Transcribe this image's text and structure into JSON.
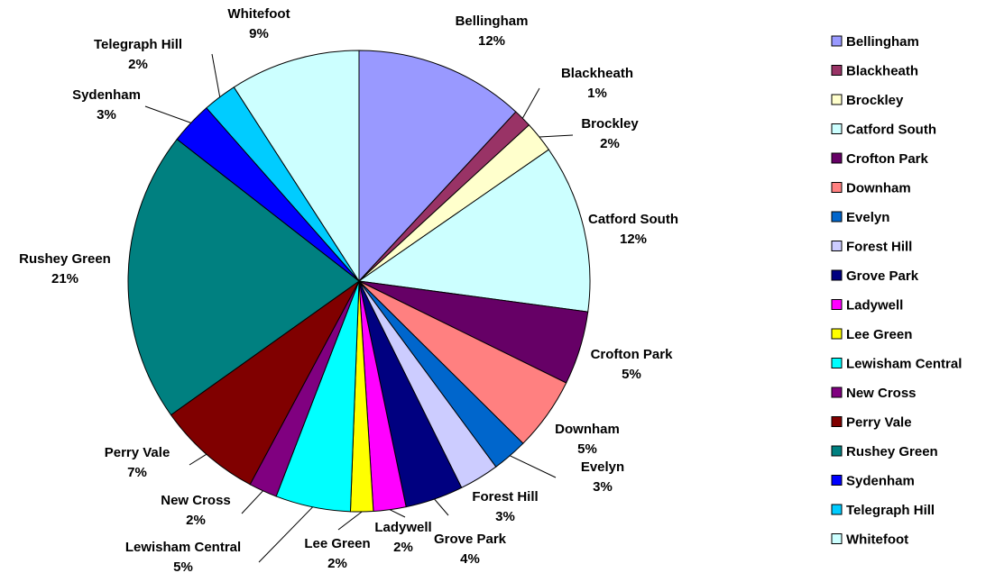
{
  "chart_data": {
    "type": "pie",
    "title": "",
    "legend_position": "right",
    "slices": [
      {
        "label": "Bellingham",
        "percent_label": "12%",
        "value": 12,
        "color": "#9999ff"
      },
      {
        "label": "Blackheath",
        "percent_label": "1%",
        "value": 1.3,
        "color": "#993366"
      },
      {
        "label": "Brockley",
        "percent_label": "2%",
        "value": 2.2,
        "color": "#ffffcc"
      },
      {
        "label": "Catford South",
        "percent_label": "12%",
        "value": 11.9,
        "color": "#ccffff"
      },
      {
        "label": "Crofton Park",
        "percent_label": "5%",
        "value": 5.2,
        "color": "#660066"
      },
      {
        "label": "Downham",
        "percent_label": "5%",
        "value": 5.2,
        "color": "#ff8080"
      },
      {
        "label": "Evelyn",
        "percent_label": "3%",
        "value": 2.5,
        "color": "#0066cc"
      },
      {
        "label": "Forest Hill",
        "percent_label": "3%",
        "value": 2.8,
        "color": "#ccccff"
      },
      {
        "label": "Grove Park",
        "percent_label": "4%",
        "value": 4.1,
        "color": "#000080"
      },
      {
        "label": "Ladywell",
        "percent_label": "2%",
        "value": 2.3,
        "color": "#ff00ff"
      },
      {
        "label": "Lee Green",
        "percent_label": "2%",
        "value": 1.6,
        "color": "#ffff00"
      },
      {
        "label": "Lewisham Central",
        "percent_label": "5%",
        "value": 5.3,
        "color": "#00ffff"
      },
      {
        "label": "New Cross",
        "percent_label": "2%",
        "value": 2.0,
        "color": "#800080"
      },
      {
        "label": "Perry Vale",
        "percent_label": "7%",
        "value": 7.4,
        "color": "#800000"
      },
      {
        "label": "Rushey Green",
        "percent_label": "21%",
        "value": 20.6,
        "color": "#008080"
      },
      {
        "label": "Sydenham",
        "percent_label": "3%",
        "value": 3.0,
        "color": "#0000ff"
      },
      {
        "label": "Telegraph Hill",
        "percent_label": "2%",
        "value": 2.4,
        "color": "#00ccff"
      },
      {
        "label": "Whitefoot",
        "percent_label": "9%",
        "value": 9.2,
        "color": "#ccffff"
      }
    ]
  }
}
